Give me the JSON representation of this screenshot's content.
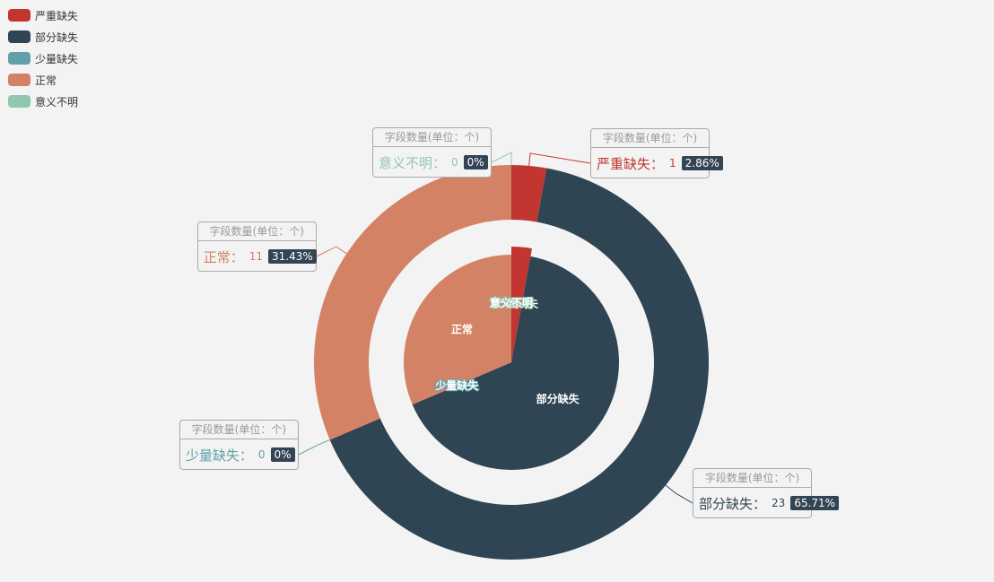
{
  "chart_data": {
    "type": "pie",
    "categories": [
      "严重缺失",
      "部分缺失",
      "少量缺失",
      "正常",
      "意义不明"
    ],
    "values": [
      1,
      23,
      0,
      11,
      0
    ],
    "percentages": [
      "2.86%",
      "65.71%",
      "0%",
      "31.43%",
      "0%"
    ],
    "label_header": "字段数量(单位：个)",
    "colors": [
      "#c23531",
      "#2f4554",
      "#61a0a8",
      "#d48265",
      "#91c7ae"
    ]
  }
}
